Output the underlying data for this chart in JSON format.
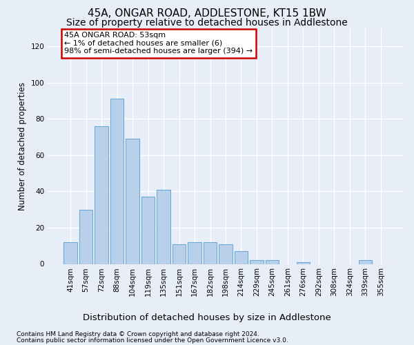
{
  "title": "45A, ONGAR ROAD, ADDLESTONE, KT15 1BW",
  "subtitle": "Size of property relative to detached houses in Addlestone",
  "xlabel": "Distribution of detached houses by size in Addlestone",
  "ylabel": "Number of detached properties",
  "categories": [
    "41sqm",
    "57sqm",
    "72sqm",
    "88sqm",
    "104sqm",
    "119sqm",
    "135sqm",
    "151sqm",
    "167sqm",
    "182sqm",
    "198sqm",
    "214sqm",
    "229sqm",
    "245sqm",
    "261sqm",
    "276sqm",
    "292sqm",
    "308sqm",
    "324sqm",
    "339sqm",
    "355sqm"
  ],
  "values": [
    12,
    30,
    76,
    91,
    69,
    37,
    41,
    11,
    12,
    12,
    11,
    7,
    2,
    2,
    0,
    1,
    0,
    0,
    0,
    2,
    0
  ],
  "bar_color": "#b8d0ea",
  "bar_edge_color": "#6aaad4",
  "ylim": [
    0,
    130
  ],
  "yticks": [
    0,
    20,
    40,
    60,
    80,
    100,
    120
  ],
  "annotation_title": "45A ONGAR ROAD: 53sqm",
  "annotation_line2": "← 1% of detached houses are smaller (6)",
  "annotation_line3": "98% of semi-detached houses are larger (394) →",
  "annotation_box_color": "#ffffff",
  "annotation_box_edge": "#cc0000",
  "footer_line1": "Contains HM Land Registry data © Crown copyright and database right 2024.",
  "footer_line2": "Contains public sector information licensed under the Open Government Licence v3.0.",
  "background_color": "#e8eef8",
  "plot_background": "#e8eef8",
  "grid_color": "#ffffff",
  "title_fontsize": 11,
  "subtitle_fontsize": 10,
  "xlabel_fontsize": 9.5,
  "ylabel_fontsize": 8.5,
  "tick_fontsize": 7.5,
  "footer_fontsize": 6.5,
  "ann_fontsize": 8
}
